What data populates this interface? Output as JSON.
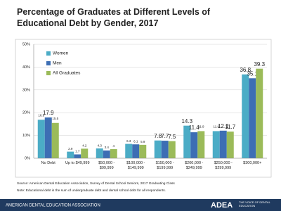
{
  "chart_data": {
    "type": "bar",
    "title": "Percentage of Graduates at Different Levels of Educational Debt by Gender, 2017",
    "categories": [
      "No Debt",
      "Up to $49,999",
      "$50,000 - $99,999",
      "$100,000 - $149,999",
      "$150,000 - $199,999",
      "$200,000 - $249,999",
      "$250,000 - $299,999",
      "$300,000+"
    ],
    "series": [
      {
        "name": "Women",
        "color": "#4bacc6",
        "values": [
          16.9,
          2.9,
          4.3,
          6.3,
          7.8,
          14.3,
          11.9,
          36.8
        ]
      },
      {
        "name": "Men",
        "color": "#3d6eb4",
        "values": [
          17.9,
          1.7,
          3.4,
          6.1,
          7.7,
          11.4,
          12.1,
          35.1
        ]
      },
      {
        "name": "All Graduates",
        "color": "#9bbb59",
        "values": [
          15.5,
          4.2,
          4.0,
          5.9,
          7.5,
          11.9,
          11.7,
          39.3
        ]
      }
    ],
    "ylim": [
      0,
      50
    ],
    "yticks": [
      {
        "value": 0,
        "label": "0%"
      },
      {
        "value": 10,
        "label": "10%"
      },
      {
        "value": 20,
        "label": "20%"
      },
      {
        "value": 30,
        "label": "30%"
      },
      {
        "value": 40,
        "label": "40%"
      },
      {
        "value": 50,
        "label": "50%"
      }
    ],
    "grid": true,
    "legend": "upper left",
    "source": "Source: American Dental Education Association, Survey of Dental School Seniors, 2017 Graduating Class",
    "note": "Note: Educational debt is the sum of undergraduate debt and dental school debt for all respondents.",
    "footer": "AMERICAN DENTAL EDUCATION ASSOCIATION",
    "logo": "ADEA",
    "tagline": "THE VOICE OF DENTAL EDUCATION"
  }
}
